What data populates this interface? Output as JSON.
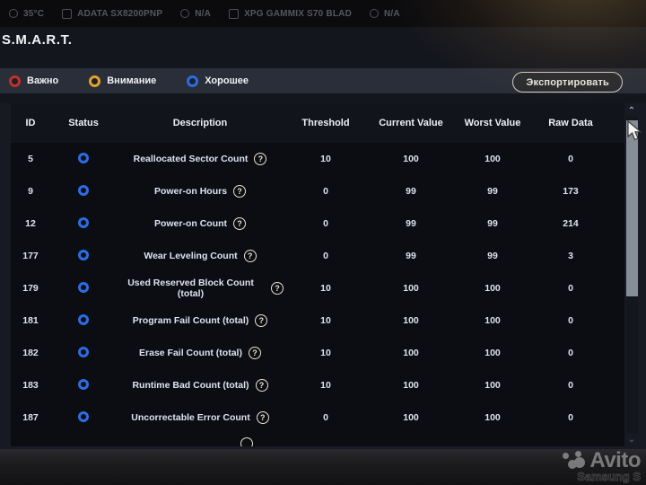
{
  "device_bar": {
    "temp": "35°C",
    "drives": [
      {
        "name": "ADATA SX8200PNP",
        "status": "N/A"
      },
      {
        "name": "XPG GAMMIX S70 BLAD",
        "status": "N/A"
      }
    ]
  },
  "page_title": "S.M.A.R.T.",
  "legend": {
    "items": [
      {
        "label": "Важно",
        "color": "#c23129"
      },
      {
        "label": "Внимание",
        "color": "#e2a12c"
      },
      {
        "label": "Хорошее",
        "color": "#2b6de2"
      }
    ]
  },
  "toolbar": {
    "export_label": "Экспортировать"
  },
  "table": {
    "columns": [
      "ID",
      "Status",
      "Description",
      "Threshold",
      "Current Value",
      "Worst Value",
      "Raw Data"
    ],
    "rows": [
      {
        "id": "5",
        "status": "good",
        "description": "Reallocated Sector Count",
        "threshold": "10",
        "current": "100",
        "worst": "100",
        "raw": "0"
      },
      {
        "id": "9",
        "status": "good",
        "description": "Power-on Hours",
        "threshold": "0",
        "current": "99",
        "worst": "99",
        "raw": "173"
      },
      {
        "id": "12",
        "status": "good",
        "description": "Power-on Count",
        "threshold": "0",
        "current": "99",
        "worst": "99",
        "raw": "214"
      },
      {
        "id": "177",
        "status": "good",
        "description": "Wear Leveling Count",
        "threshold": "0",
        "current": "99",
        "worst": "99",
        "raw": "3"
      },
      {
        "id": "179",
        "status": "good",
        "description": "Used Reserved Block Count (total)",
        "threshold": "10",
        "current": "100",
        "worst": "100",
        "raw": "0"
      },
      {
        "id": "181",
        "status": "good",
        "description": "Program Fail Count (total)",
        "threshold": "10",
        "current": "100",
        "worst": "100",
        "raw": "0"
      },
      {
        "id": "182",
        "status": "good",
        "description": "Erase Fail Count (total)",
        "threshold": "10",
        "current": "100",
        "worst": "100",
        "raw": "0"
      },
      {
        "id": "183",
        "status": "good",
        "description": "Runtime Bad Count (total)",
        "threshold": "10",
        "current": "100",
        "worst": "100",
        "raw": "0"
      },
      {
        "id": "187",
        "status": "good",
        "description": "Uncorrectable Error Count",
        "threshold": "0",
        "current": "100",
        "worst": "100",
        "raw": "0"
      }
    ]
  },
  "watermark": {
    "brand": "Avito",
    "sub": "Samsung S"
  }
}
